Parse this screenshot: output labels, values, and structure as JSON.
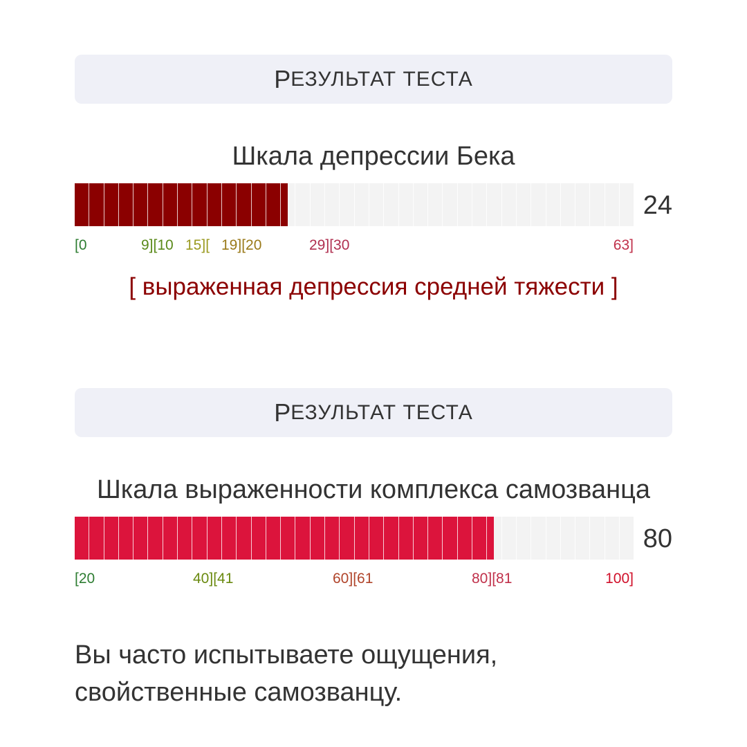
{
  "result1": {
    "header_first": "Р",
    "header_rest": "ЕЗУЛЬТАТ ТЕСТА",
    "scale_title": "Шкала депрессии Бека",
    "score": "24",
    "range": [
      0,
      63
    ],
    "fill_color": "#8b0000",
    "ticks": [
      {
        "text": "[0",
        "color": "#2e7d32"
      },
      {
        "text": "9][10",
        "color": "#5a8a1a"
      },
      {
        "text": "15][",
        "color": "#9a9a20"
      },
      {
        "text": "19][20",
        "color": "#9a7a1a"
      },
      {
        "text": "29][30",
        "color": "#b03050"
      },
      {
        "text": "63]",
        "color": "#c0304a"
      }
    ],
    "verdict": "[ выраженная депрессия средней тяжести ]"
  },
  "result2": {
    "header_first": "Р",
    "header_rest": "ЕЗУЛЬТАТ ТЕСТА",
    "scale_title": "Шкала выраженности комплекса самозванца",
    "score": "80",
    "range": [
      20,
      100
    ],
    "fill_color": "#dc143c",
    "ticks": [
      {
        "text": "[20",
        "color": "#2e7d32"
      },
      {
        "text": "40][41",
        "color": "#6a8a10"
      },
      {
        "text": "60][61",
        "color": "#b0442a"
      },
      {
        "text": "80][81",
        "color": "#c0304a"
      },
      {
        "text": "100]",
        "color": "#d0102a"
      }
    ],
    "conclusion_line1": "Вы часто испытываете ощущения,",
    "conclusion_line2": "свойственные самозванцу."
  }
}
